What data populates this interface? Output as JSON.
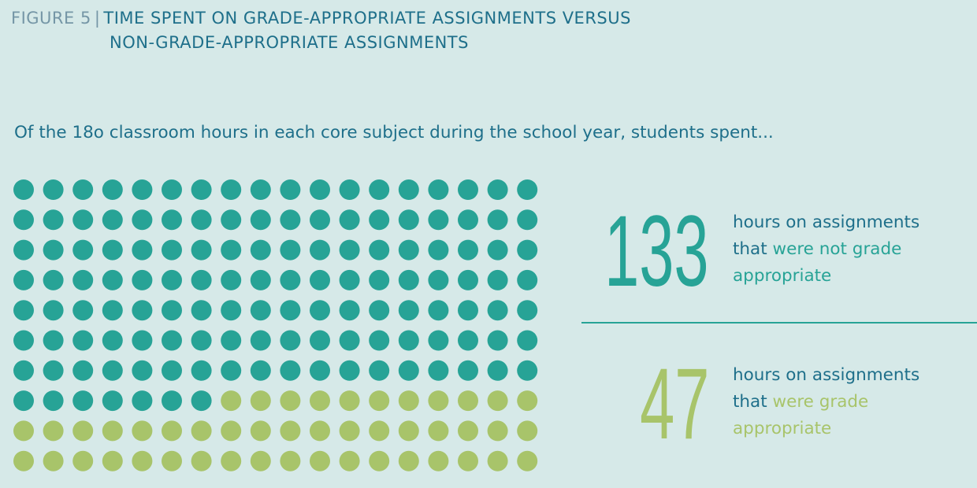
{
  "header": {
    "figure_label": "FIGURE 5",
    "separator": "|",
    "title_line1": "TIME SPENT ON GRADE-APPROPRIATE ASSIGNMENTS VERSUS",
    "title_line2": "NON-GRADE-APPROPRIATE ASSIGNMENTS"
  },
  "subtitle": "Of the 18o classroom hours in each core subject during the school year, students spent...",
  "stat_not": {
    "value": "133",
    "line1": "hours on assignments",
    "line2_a": "that",
    "line2_b": " were not grade",
    "line3": "appropriate"
  },
  "stat_yes": {
    "value": "47",
    "line1": "hours on assignments",
    "line2_a": "that",
    "line2_b": " were grade",
    "line3": "appropriate"
  },
  "chart_data": {
    "type": "dot-grid",
    "title": "Time spent on grade-appropriate assignments versus non-grade-appropriate assignments",
    "total": 180,
    "columns": 18,
    "rows": 10,
    "series": [
      {
        "name": "not grade appropriate",
        "value": 133,
        "color": "#27a396"
      },
      {
        "name": "grade appropriate",
        "value": 47,
        "color": "#a8c46a"
      }
    ]
  }
}
